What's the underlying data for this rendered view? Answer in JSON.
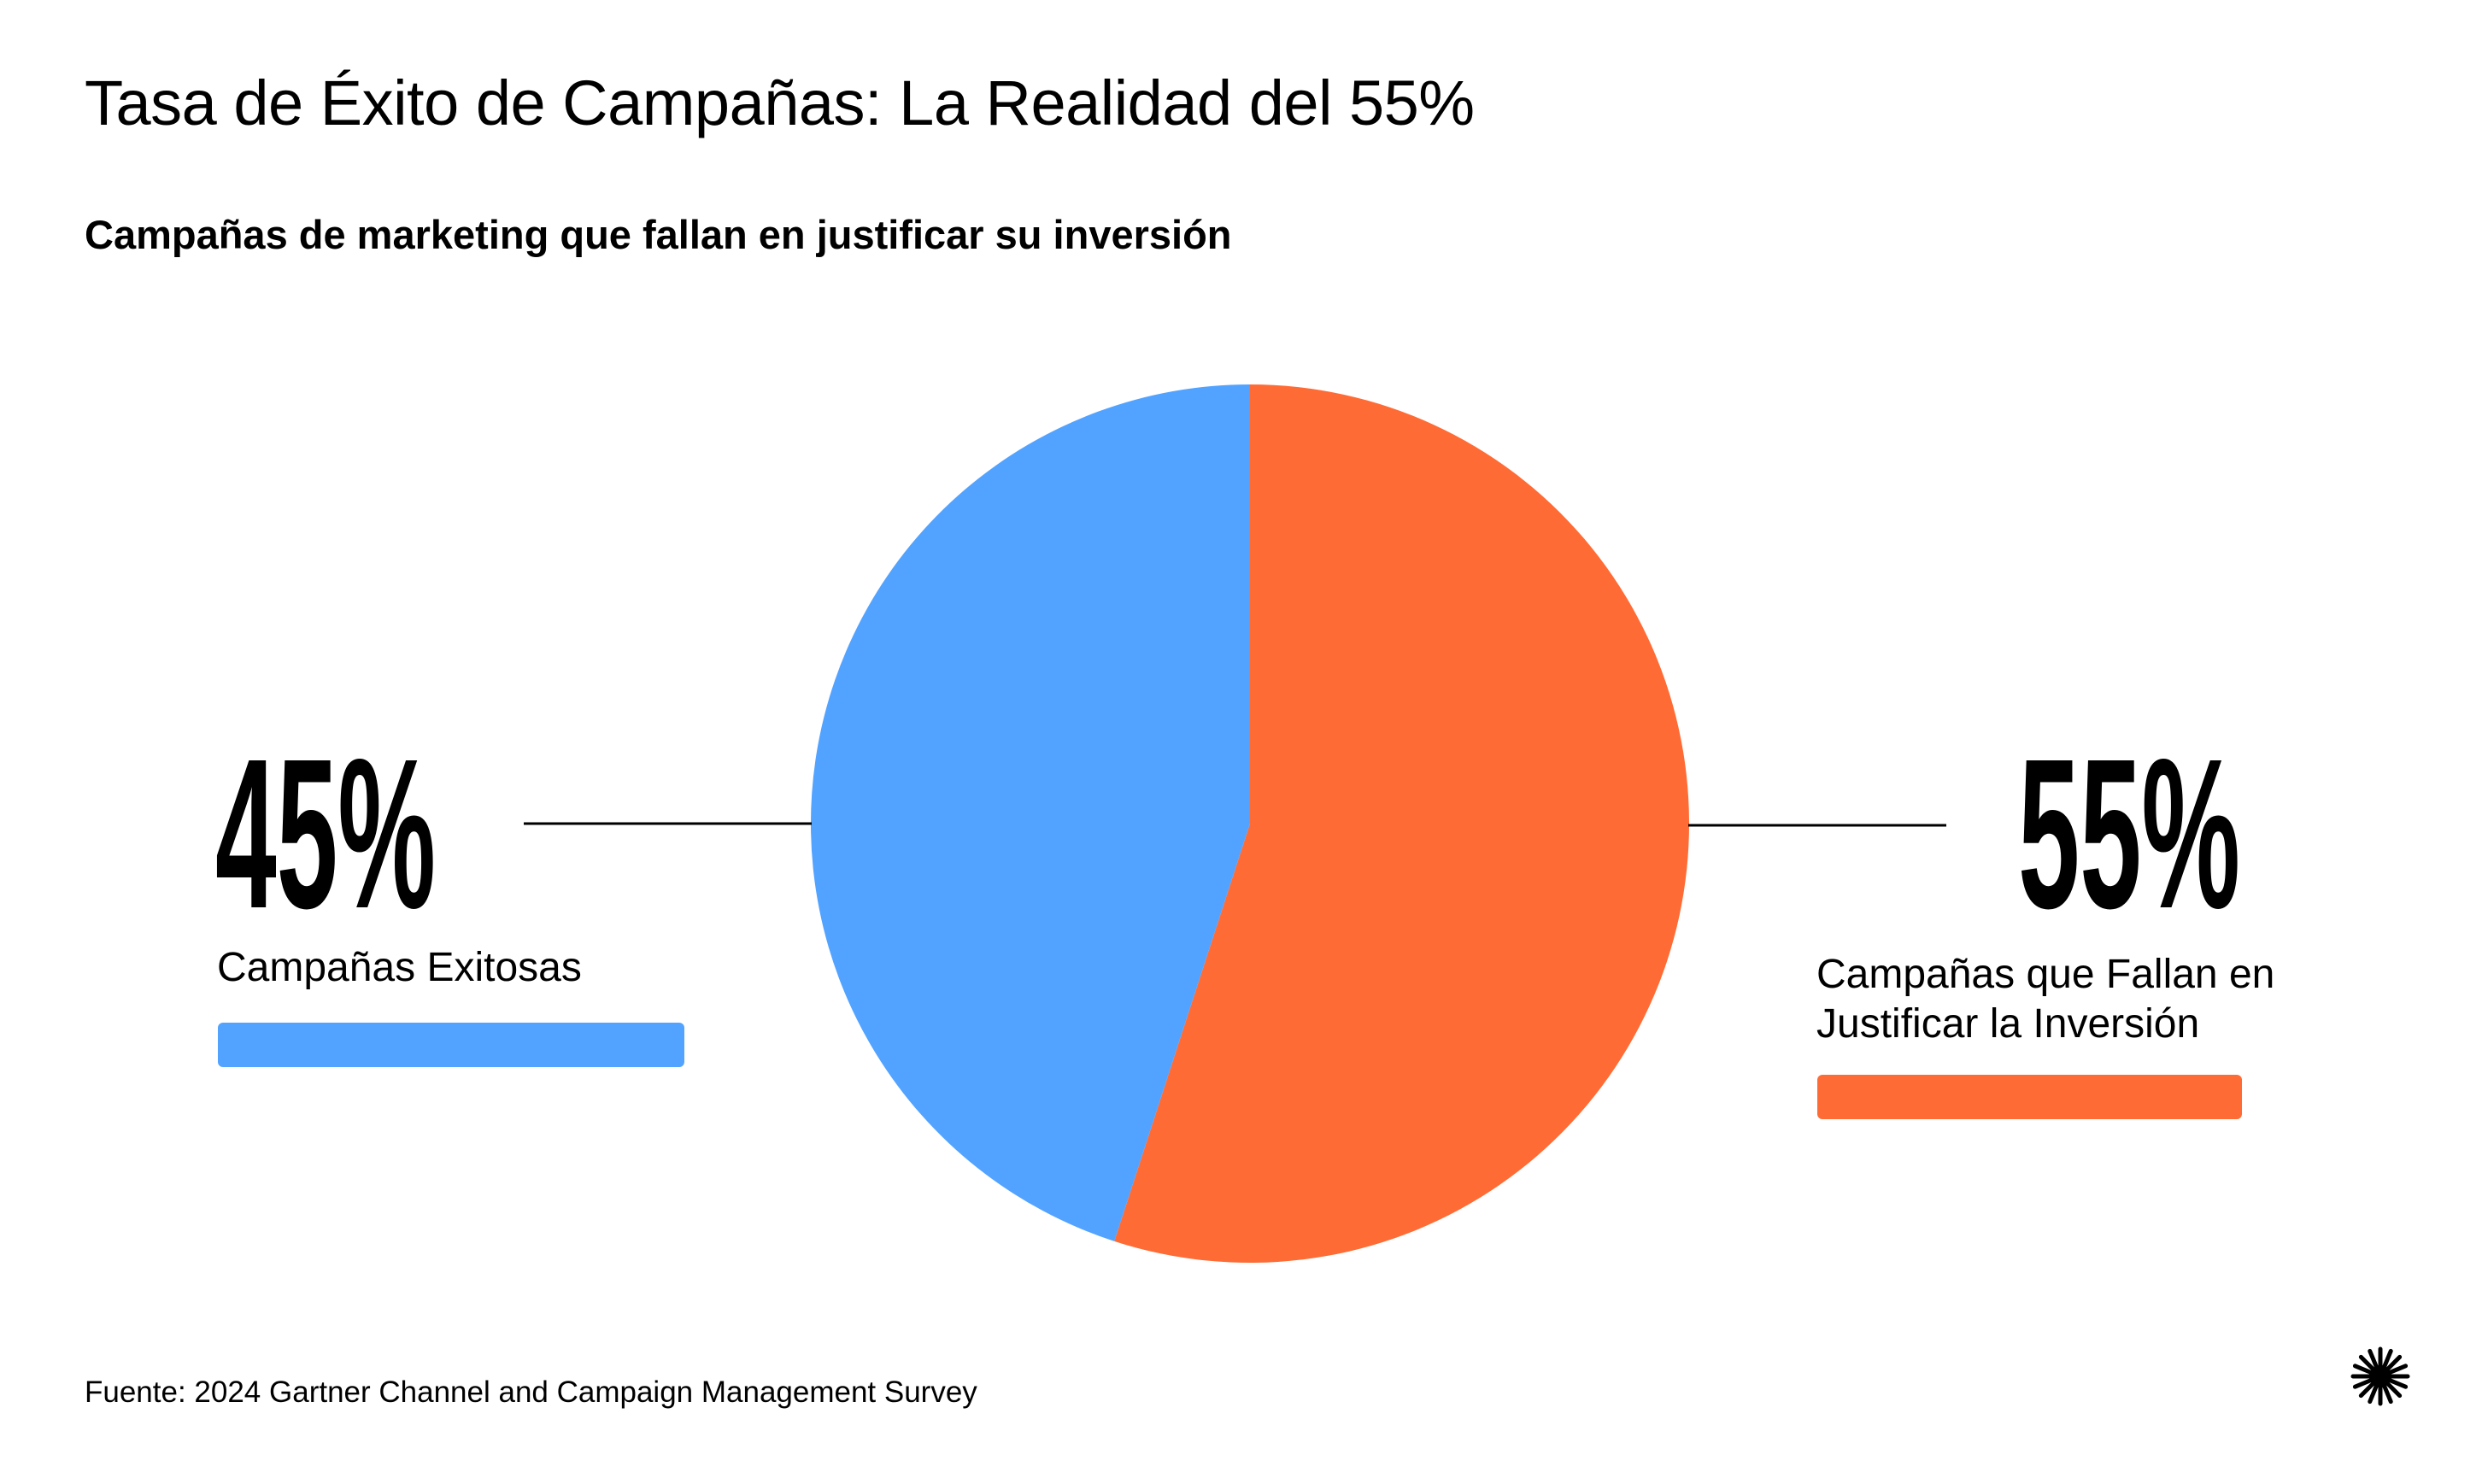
{
  "title": "Tasa de Éxito de Campañas: La Realidad del 55%",
  "subtitle": "Campañas de marketing que fallan en justificar su inversión",
  "source": "Fuente: 2024 Gartner Channel and Campaign Management Survey",
  "chart_data": {
    "type": "pie",
    "title": "Tasa de Éxito de Campañas: La Realidad del 55%",
    "subtitle": "Campañas de marketing que fallan en justificar su inversión",
    "slices": [
      {
        "label": "Campañas que Fallan en Justificar la Inversión",
        "value": 55,
        "display": "55%",
        "color": "#FF6B35"
      },
      {
        "label": "Campañas Exitosas",
        "value": 45,
        "display": "45%",
        "color": "#52A3FF"
      }
    ]
  },
  "labels": {
    "left_pct": "45%",
    "left_text": "Campañas Exitosas",
    "right_pct": "55%",
    "right_text_line1": "Campañas que Fallan en",
    "right_text_line2": "Justificar la Inversión"
  },
  "colors": {
    "success": "#52A3FF",
    "fail": "#FF6B35"
  },
  "logo_icon": "asterisk-burst-icon"
}
